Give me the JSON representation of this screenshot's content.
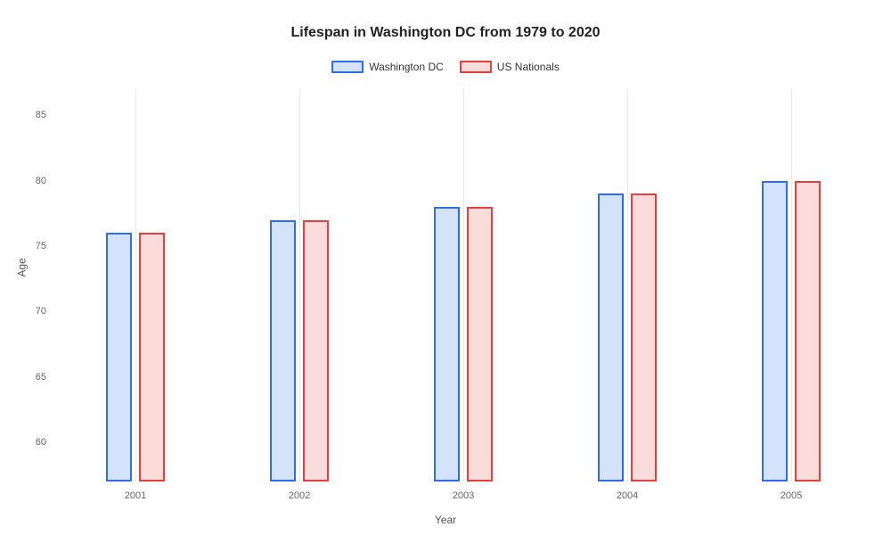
{
  "chart": {
    "type": "bar",
    "title": "Lifespan in Washington DC from 1979 to 2020",
    "title_fontsize": 16,
    "x_axis_label": "Year",
    "y_axis_label": "Age",
    "label_fontsize": 12,
    "tick_fontsize": 11,
    "background_color": "#ffffff",
    "grid_color": "#e8e8e8",
    "ylim": [
      57,
      87
    ],
    "y_ticks": [
      60,
      65,
      70,
      75,
      80,
      85
    ],
    "categories": [
      "2001",
      "2002",
      "2003",
      "2004",
      "2005"
    ],
    "series": [
      {
        "name": "Washington DC",
        "border_color": "#2e6cf0",
        "fill_color": "#d4e2fb",
        "values": [
          76,
          77,
          78,
          79,
          80
        ]
      },
      {
        "name": "US Nationals",
        "border_color": "#e54040",
        "fill_color": "#fadcdb",
        "values": [
          76,
          77,
          78,
          79,
          80
        ]
      }
    ],
    "bar_width_ratio": 0.16,
    "bar_gap_ratio": 0.04,
    "border_width": 2
  }
}
